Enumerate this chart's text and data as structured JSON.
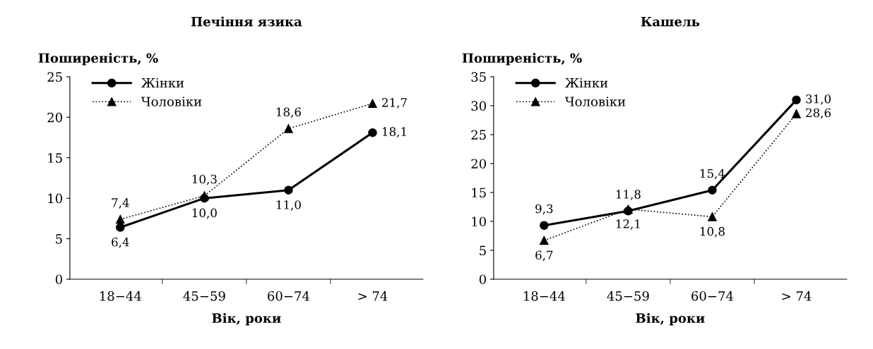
{
  "chart_data": [
    {
      "type": "line",
      "title": "Печіння язика",
      "ylabel": "Поширеність, %",
      "xlabel": "Вік, роки",
      "categories": [
        "18−44",
        "45−59",
        "60−74",
        "> 74"
      ],
      "ylim": [
        0,
        25
      ],
      "yticks": [
        0,
        5,
        10,
        15,
        20,
        25
      ],
      "legend": "top left",
      "grid": false,
      "series": [
        {
          "name": "Жінки",
          "color": "#000000",
          "marker": "circle",
          "line_style": "solid",
          "values": [
            6.4,
            10.0,
            11.0,
            18.1
          ],
          "value_labels": [
            "6,4",
            "10,0",
            "11,0",
            "18,1"
          ]
        },
        {
          "name": "Чоловіки",
          "color": "#000000",
          "marker": "triangle",
          "line_style": "dotted",
          "values": [
            7.4,
            10.3,
            18.6,
            21.7
          ],
          "value_labels": [
            "7,4",
            "10,3",
            "18,6",
            "21,7"
          ]
        }
      ]
    },
    {
      "type": "line",
      "title": "Кашель",
      "ylabel": "Поширеність, %",
      "xlabel": "Вік, роки",
      "categories": [
        "18−44",
        "45−59",
        "60−74",
        "> 74"
      ],
      "ylim": [
        0,
        35
      ],
      "yticks": [
        0,
        5,
        10,
        15,
        20,
        25,
        30,
        35
      ],
      "legend": "top left",
      "grid": false,
      "series": [
        {
          "name": "Жінки",
          "color": "#000000",
          "marker": "circle",
          "line_style": "solid",
          "values": [
            9.3,
            11.8,
            15.4,
            31.0
          ],
          "value_labels": [
            "9,3",
            "11,8",
            "15,4",
            "31,0"
          ]
        },
        {
          "name": "Чоловіки",
          "color": "#000000",
          "marker": "triangle",
          "line_style": "dotted",
          "values": [
            6.7,
            12.1,
            10.8,
            28.6
          ],
          "value_labels": [
            "6,7",
            "12,1",
            "10,8",
            "28,6"
          ]
        }
      ]
    }
  ]
}
